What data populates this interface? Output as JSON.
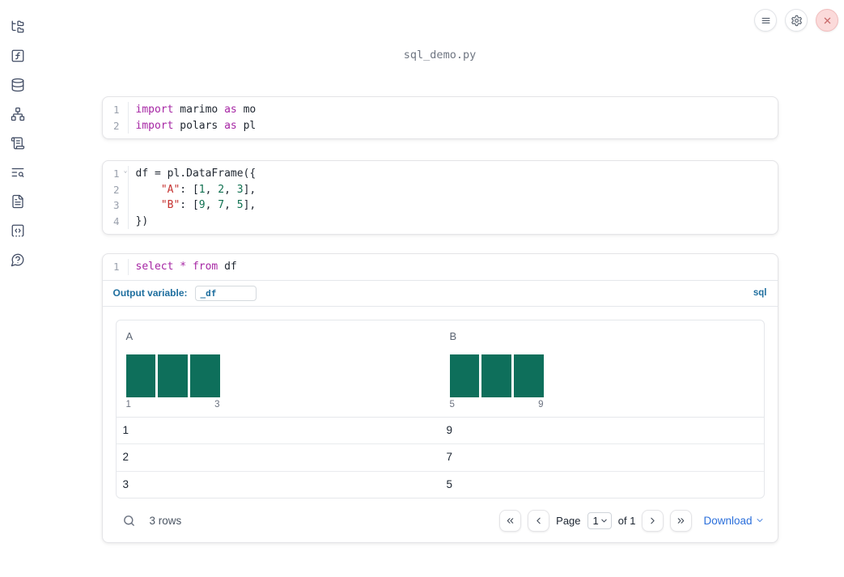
{
  "app": {
    "title": "sql_demo.py"
  },
  "colors": {
    "keyword": "#a626a4",
    "string": "#c5312f",
    "number": "#0f7050",
    "histogram_bar": "#0e6f5b",
    "label_blue": "#1f6f9f",
    "accent_blue": "#2b6fdb",
    "sidebar_icon": "#3f4a62"
  },
  "sidebar": {
    "items": [
      {
        "name": "file-explorer",
        "icon": "folder-tree"
      },
      {
        "name": "variables",
        "icon": "square-function"
      },
      {
        "name": "datasources",
        "icon": "database"
      },
      {
        "name": "dependencies",
        "icon": "network"
      },
      {
        "name": "logs",
        "icon": "scroll-text"
      },
      {
        "name": "tracebacks",
        "icon": "text-search"
      },
      {
        "name": "documentation",
        "icon": "file-text"
      },
      {
        "name": "snippets",
        "icon": "square-dashed-code"
      },
      {
        "name": "help",
        "icon": "message-question"
      }
    ]
  },
  "header": {
    "buttons": [
      {
        "name": "menu",
        "icon": "hamburger"
      },
      {
        "name": "settings",
        "icon": "gear"
      },
      {
        "name": "shutdown",
        "icon": "close"
      }
    ]
  },
  "cells": [
    {
      "type": "code",
      "lines": [
        {
          "num": "1",
          "tokens": [
            [
              "kw",
              "import"
            ],
            [
              "pl",
              " marimo "
            ],
            [
              "kw",
              "as"
            ],
            [
              "pl",
              " mo"
            ]
          ]
        },
        {
          "num": "2",
          "tokens": [
            [
              "kw",
              "import"
            ],
            [
              "pl",
              " polars "
            ],
            [
              "kw",
              "as"
            ],
            [
              "pl",
              " pl"
            ]
          ]
        }
      ]
    },
    {
      "type": "code",
      "lines": [
        {
          "num": "1",
          "fold": true,
          "tokens": [
            [
              "pl",
              "df = pl.DataFrame({"
            ]
          ]
        },
        {
          "num": "2",
          "tokens": [
            [
              "pl",
              "    "
            ],
            [
              "str",
              "\"A\""
            ],
            [
              "pl",
              ": ["
            ],
            [
              "num",
              "1"
            ],
            [
              "pl",
              ", "
            ],
            [
              "num",
              "2"
            ],
            [
              "pl",
              ", "
            ],
            [
              "num",
              "3"
            ],
            [
              "pl",
              "],"
            ]
          ]
        },
        {
          "num": "3",
          "tokens": [
            [
              "pl",
              "    "
            ],
            [
              "str",
              "\"B\""
            ],
            [
              "pl",
              ": ["
            ],
            [
              "num",
              "9"
            ],
            [
              "pl",
              ", "
            ],
            [
              "num",
              "7"
            ],
            [
              "pl",
              ", "
            ],
            [
              "num",
              "5"
            ],
            [
              "pl",
              "],"
            ]
          ]
        },
        {
          "num": "4",
          "tokens": [
            [
              "pl",
              "})"
            ]
          ]
        }
      ]
    },
    {
      "type": "sql",
      "lines": [
        {
          "num": "1",
          "tokens": [
            [
              "kw",
              "select"
            ],
            [
              "pl",
              " "
            ],
            [
              "kw",
              "*"
            ],
            [
              "pl",
              " "
            ],
            [
              "kw",
              "from"
            ],
            [
              "pl",
              " df"
            ]
          ]
        }
      ]
    }
  ],
  "sql_cell": {
    "output_variable_label": "Output variable:",
    "output_variable_value": "_df",
    "language_badge": "sql"
  },
  "table": {
    "columns": [
      {
        "name": "A",
        "hist": {
          "bars": [
            1,
            1,
            1
          ],
          "min_label": "1",
          "max_label": "3"
        }
      },
      {
        "name": "B",
        "hist": {
          "bars": [
            1,
            1,
            1
          ],
          "min_label": "5",
          "max_label": "9"
        }
      }
    ],
    "rows": [
      [
        "1",
        "9"
      ],
      [
        "2",
        "7"
      ],
      [
        "3",
        "5"
      ]
    ],
    "footer": {
      "row_count": "3 rows",
      "page_label": "Page",
      "page_value": "1",
      "of_label": "of 1",
      "download_label": "Download"
    }
  },
  "ui": {
    "icons": [
      "search",
      "chevron-down",
      "chevrons-left",
      "chevron-left",
      "chevron-right",
      "chevrons-right"
    ]
  }
}
